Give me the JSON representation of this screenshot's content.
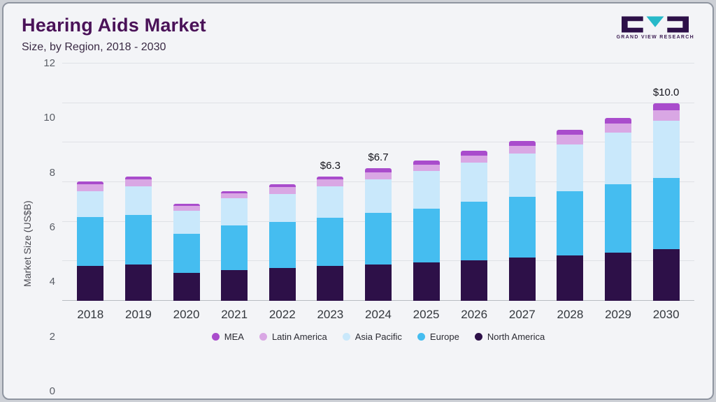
{
  "header": {
    "title": "Hearing Aids Market",
    "subtitle": "Size, by Region, 2018 - 2030"
  },
  "logo": {
    "caption": "GRAND VIEW RESEARCH",
    "dark_color": "#2d1048",
    "teal_color": "#27b9c9"
  },
  "chart_data": {
    "type": "bar",
    "stacked": true,
    "title": "Hearing Aids Market Size, by Region, 2018 - 2030",
    "xlabel": "",
    "ylabel": "Market Size (US$B)",
    "ylim": [
      0,
      12
    ],
    "yticks": [
      0,
      2,
      4,
      6,
      8,
      10,
      12
    ],
    "grid": true,
    "legend_position": "bottom",
    "categories": [
      "2018",
      "2019",
      "2020",
      "2021",
      "2022",
      "2023",
      "2024",
      "2025",
      "2026",
      "2027",
      "2028",
      "2029",
      "2030"
    ],
    "series": [
      {
        "name": "North America",
        "color": "#2d1048",
        "values": [
          1.75,
          1.85,
          1.4,
          1.55,
          1.65,
          1.75,
          1.85,
          1.95,
          2.05,
          2.2,
          2.3,
          2.45,
          2.6
        ]
      },
      {
        "name": "Europe",
        "color": "#45bdf0",
        "values": [
          2.5,
          2.5,
          2.0,
          2.25,
          2.35,
          2.45,
          2.6,
          2.7,
          2.95,
          3.05,
          3.25,
          3.45,
          3.6
        ]
      },
      {
        "name": "Asia Pacific",
        "color": "#c9e8fb",
        "values": [
          1.3,
          1.45,
          1.15,
          1.4,
          1.4,
          1.6,
          1.7,
          1.9,
          2.0,
          2.2,
          2.35,
          2.6,
          2.9
        ]
      },
      {
        "name": "Latin America",
        "color": "#d9a7e4",
        "values": [
          0.35,
          0.35,
          0.25,
          0.25,
          0.35,
          0.35,
          0.35,
          0.35,
          0.35,
          0.4,
          0.5,
          0.45,
          0.55
        ]
      },
      {
        "name": "MEA",
        "color": "#a94ccc",
        "values": [
          0.15,
          0.15,
          0.1,
          0.1,
          0.15,
          0.15,
          0.2,
          0.2,
          0.25,
          0.25,
          0.25,
          0.3,
          0.35
        ]
      }
    ],
    "annotations": [
      {
        "category": "2023",
        "label": "$6.3"
      },
      {
        "category": "2024",
        "label": "$6.7"
      },
      {
        "category": "2030",
        "label": "$10.0"
      }
    ],
    "legend": [
      "MEA",
      "Latin America",
      "Asia Pacific",
      "Europe",
      "North America"
    ]
  }
}
